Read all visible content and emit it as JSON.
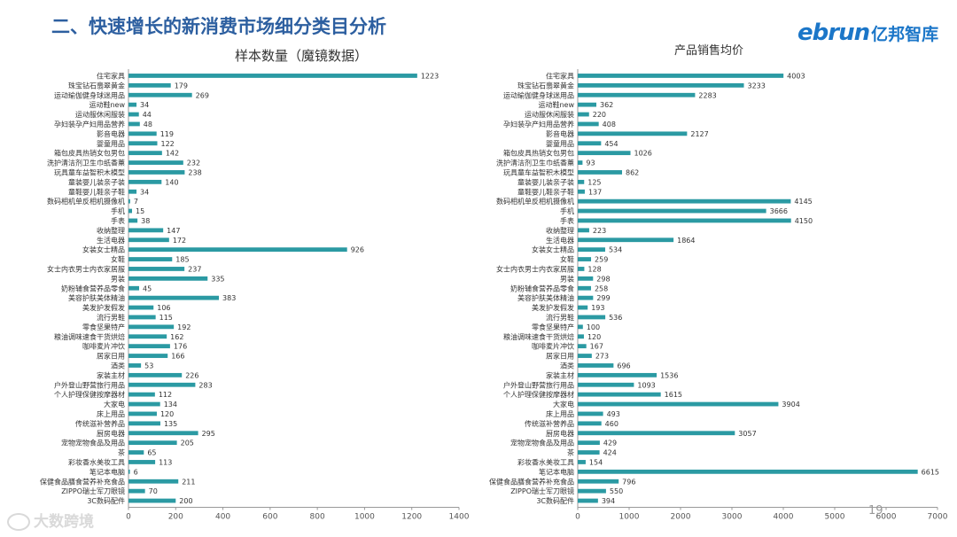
{
  "page": {
    "title": "二、快速增长的新消费市场细分类目分析",
    "logo_en": "ebrun",
    "logo_cn": "亿邦智库",
    "page_number": "19",
    "watermark": "大数跨境"
  },
  "colors": {
    "bar": "#2b9aa3",
    "title": "#2d5fa0",
    "axis": "#999999",
    "text": "#333333"
  },
  "chart_data": [
    {
      "type": "bar",
      "orientation": "horizontal",
      "title": "样本数量（魔镜数据）",
      "xlim": [
        0,
        1400
      ],
      "xticks": [
        0,
        200,
        400,
        600,
        800,
        1000,
        1200,
        1400
      ],
      "categories": [
        "住宅家具",
        "珠宝钻石翡翠黄金",
        "运动瑜伽健身球迷用品",
        "运动鞋new",
        "运动服休闲服装",
        "孕妇装孕产妇用品营养",
        "影音电器",
        "婴童用品",
        "箱包皮具热销女包男包",
        "洗护清洁剂卫生巾纸香薰",
        "玩具童车益智积木模型",
        "童装婴儿装亲子装",
        "童鞋婴儿鞋亲子鞋",
        "数码相机单反相机摄像机",
        "手机",
        "手表",
        "收纳整理",
        "生活电器",
        "女装女士精品",
        "女鞋",
        "女士内衣男士内衣家居服",
        "男装",
        "奶粉辅食营养品零食",
        "美容护肤美体精油",
        "美发护发假发",
        "流行男鞋",
        "零食坚果特产",
        "粮油调味速食干货烘焙",
        "咖啡麦片冲饮",
        "居家日用",
        "酒类",
        "家装主材",
        "户外登山野营旅行用品",
        "个人护理保健按摩器材",
        "大家电",
        "床上用品",
        "传统滋补营养品",
        "厨房电器",
        "宠物宠物食品及用品",
        "茶",
        "彩妆香水美妆工具",
        "笔记本电脑",
        "保健食品膳食营养补充食品",
        "ZIPPO瑞士军刀眼镜",
        "3C数码配件"
      ],
      "values": [
        1223,
        179,
        269,
        34,
        44,
        48,
        119,
        122,
        142,
        232,
        238,
        140,
        34,
        7,
        15,
        38,
        147,
        172,
        926,
        185,
        237,
        335,
        45,
        383,
        106,
        115,
        192,
        162,
        176,
        166,
        53,
        226,
        283,
        112,
        134,
        120,
        135,
        295,
        205,
        65,
        113,
        6,
        211,
        70,
        200
      ]
    },
    {
      "type": "bar",
      "orientation": "horizontal",
      "title": "产品销售均价",
      "xlim": [
        0,
        7000
      ],
      "xticks": [
        0,
        1000,
        2000,
        3000,
        4000,
        5000,
        6000,
        7000
      ],
      "categories": [
        "住宅家具",
        "珠宝钻石翡翠黄金",
        "运动瑜伽健身球迷用品",
        "运动鞋new",
        "运动服休闲服装",
        "孕妇装孕产妇用品营养",
        "影音电器",
        "婴童用品",
        "箱包皮具热销女包男包",
        "洗护清洁剂卫生巾纸香薰",
        "玩具童车益智积木模型",
        "童装婴儿装亲子装",
        "童鞋婴儿鞋亲子鞋",
        "数码相机单反相机摄像机",
        "手机",
        "手表",
        "收纳整理",
        "生活电器",
        "女装女士精品",
        "女鞋",
        "女士内衣男士内衣家居服",
        "男装",
        "奶粉辅食营养品零食",
        "美容护肤美体精油",
        "美发护发假发",
        "流行男鞋",
        "零食坚果特产",
        "粮油调味速食干货烘焙",
        "咖啡麦片冲饮",
        "居家日用",
        "酒类",
        "家装主材",
        "户外登山野营旅行用品",
        "个人护理保健按摩器材",
        "大家电",
        "床上用品",
        "传统滋补营养品",
        "厨房电器",
        "宠物宠物食品及用品",
        "茶",
        "彩妆香水美妆工具",
        "笔记本电脑",
        "保健食品膳食营养补充食品",
        "ZIPPO瑞士军刀眼镜",
        "3C数码配件"
      ],
      "values": [
        4003,
        3233,
        2283,
        362,
        220,
        408,
        2127,
        454,
        1026,
        93,
        862,
        125,
        137,
        4145,
        3666,
        4150,
        223,
        1864,
        534,
        259,
        128,
        298,
        258,
        299,
        193,
        536,
        100,
        120,
        167,
        273,
        696,
        1536,
        1093,
        1615,
        3904,
        493,
        460,
        3057,
        429,
        424,
        154,
        6615,
        796,
        550,
        394
      ]
    }
  ]
}
